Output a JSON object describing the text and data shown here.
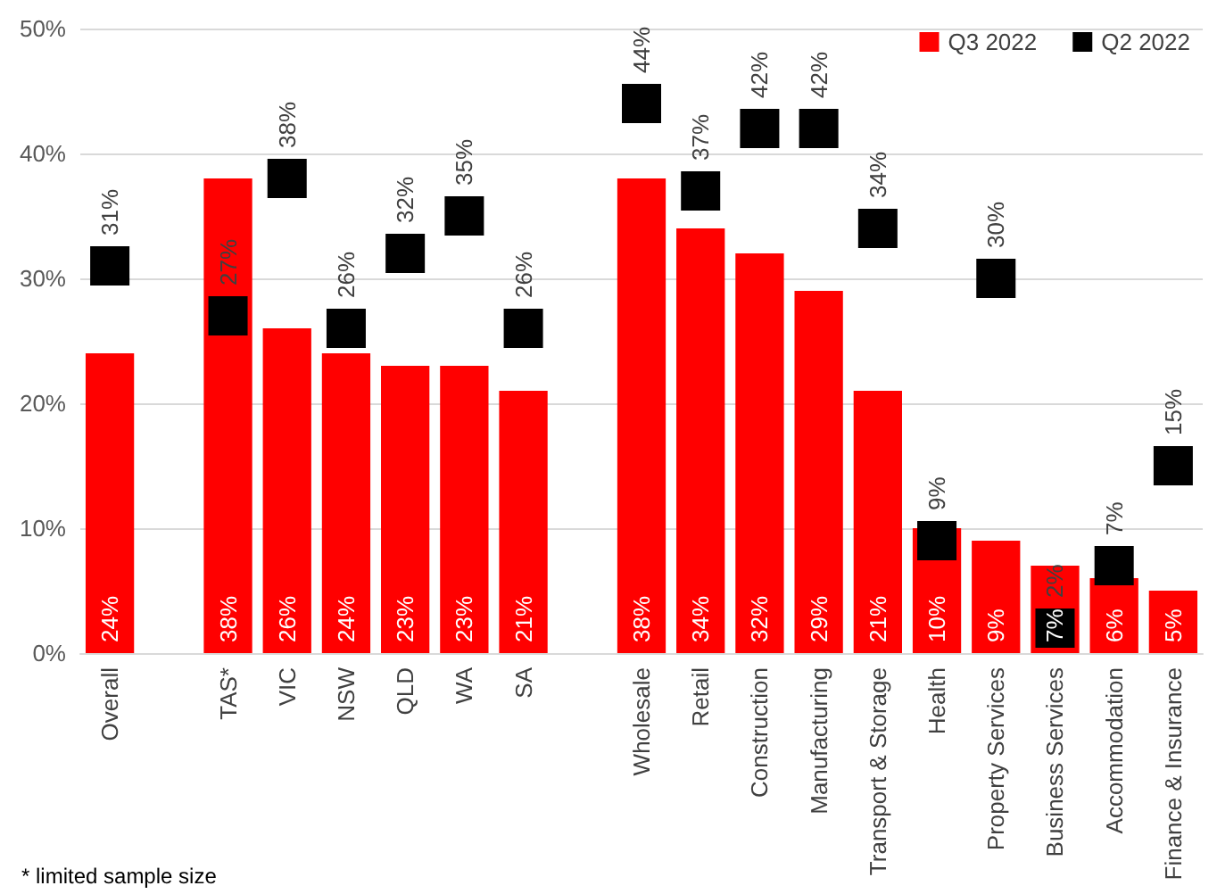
{
  "chart_data": {
    "type": "bar",
    "categories": [
      "Overall",
      null,
      "TAS*",
      "VIC",
      "NSW",
      "QLD",
      "WA",
      "SA",
      null,
      "Wholesale",
      "Retail",
      "Construction",
      "Manufacturing",
      "Transport & Storage",
      "Health",
      "Property Services",
      "Business Services",
      "Accommodation",
      "Finance & Insurance"
    ],
    "series": [
      {
        "name": "Q3 2022",
        "type": "bar",
        "color": "#ff0000",
        "values": [
          24,
          null,
          38,
          26,
          24,
          23,
          23,
          21,
          null,
          38,
          34,
          32,
          29,
          21,
          10,
          9,
          7,
          6,
          5
        ],
        "value_labels": [
          "24%",
          null,
          "38%",
          "26%",
          "24%",
          "23%",
          "23%",
          "21%",
          null,
          "38%",
          "34%",
          "32%",
          "29%",
          "21%",
          "10%",
          "9%",
          "7%",
          "6%",
          "5%"
        ]
      },
      {
        "name": "Q2 2022",
        "type": "scatter",
        "color": "#000000",
        "values": [
          31,
          null,
          27,
          38,
          26,
          32,
          35,
          26,
          null,
          44,
          37,
          42,
          42,
          34,
          9,
          30,
          2,
          7,
          15
        ],
        "value_labels": [
          "31%",
          null,
          "27%",
          "38%",
          "26%",
          "32%",
          "35%",
          "26%",
          null,
          "44%",
          "37%",
          "42%",
          "42%",
          "34%",
          "9%",
          "30%",
          "2%",
          "7%",
          "15%"
        ]
      }
    ],
    "ylim": [
      0,
      50
    ],
    "yticks": [
      {
        "value": 0,
        "label": "0%"
      },
      {
        "value": 10,
        "label": "10%"
      },
      {
        "value": 20,
        "label": "20%"
      },
      {
        "value": 30,
        "label": "30%"
      },
      {
        "value": 40,
        "label": "40%"
      },
      {
        "value": 50,
        "label": "50%"
      }
    ],
    "grid": "y",
    "legend": "top right",
    "marker": "square",
    "annotations": [
      "* limited sample size"
    ]
  }
}
